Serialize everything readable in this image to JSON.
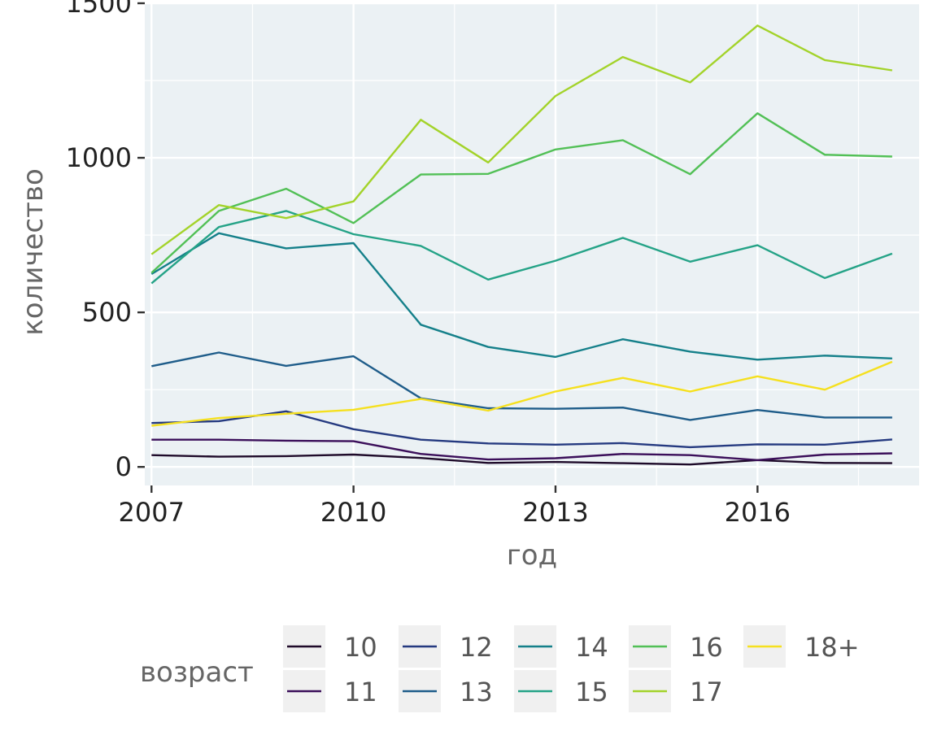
{
  "chart_data": {
    "type": "line",
    "xlabel": "год",
    "ylabel": "количество",
    "xlim": [
      2006.9,
      2018.4
    ],
    "ylim": [
      -60,
      1500
    ],
    "x_ticks": [
      2007,
      2010,
      2013,
      2016
    ],
    "x_tick_labels": [
      "2007",
      "2010",
      "2013",
      "2016"
    ],
    "y_ticks": [
      0,
      500,
      1000,
      1500
    ],
    "y_tick_labels": [
      "0",
      "500",
      "1000",
      "1500"
    ],
    "grid": true,
    "panel_background": "#ebf1f4",
    "legend": {
      "title": "возраст",
      "position": "bottom"
    },
    "x": [
      2007,
      2008,
      2009,
      2010,
      2011,
      2012,
      2013,
      2014,
      2015,
      2016,
      2017,
      2018
    ],
    "series": [
      {
        "name": "10",
        "color": "#1f0b2a",
        "values": [
          38,
          33,
          35,
          40,
          29,
          13,
          16,
          12,
          8,
          22,
          13,
          12
        ]
      },
      {
        "name": "11",
        "color": "#3b0f5a",
        "values": [
          88,
          88,
          85,
          83,
          42,
          24,
          28,
          42,
          38,
          22,
          40,
          44
        ]
      },
      {
        "name": "12",
        "color": "#253a80",
        "values": [
          142,
          148,
          180,
          122,
          88,
          76,
          72,
          77,
          64,
          73,
          72,
          89
        ]
      },
      {
        "name": "13",
        "color": "#1f5d8a",
        "values": [
          326,
          370,
          327,
          358,
          222,
          190,
          188,
          192,
          152,
          184,
          160,
          160
        ]
      },
      {
        "name": "14",
        "color": "#15808a",
        "values": [
          624,
          756,
          707,
          724,
          460,
          388,
          356,
          413,
          373,
          347,
          360,
          351
        ]
      },
      {
        "name": "15",
        "color": "#25a387",
        "values": [
          594,
          776,
          828,
          753,
          715,
          606,
          667,
          741,
          664,
          717,
          611,
          690
        ]
      },
      {
        "name": "16",
        "color": "#52c056",
        "values": [
          628,
          828,
          900,
          789,
          946,
          948,
          1027,
          1057,
          947,
          1144,
          1010,
          1004
        ]
      },
      {
        "name": "17",
        "color": "#a3d32a",
        "values": [
          688,
          847,
          805,
          859,
          1123,
          985,
          1200,
          1326,
          1244,
          1428,
          1316,
          1283
        ]
      },
      {
        "name": "18+",
        "color": "#f5e01f",
        "values": [
          133,
          158,
          172,
          185,
          220,
          182,
          244,
          288,
          244,
          293,
          250,
          340
        ]
      }
    ]
  }
}
